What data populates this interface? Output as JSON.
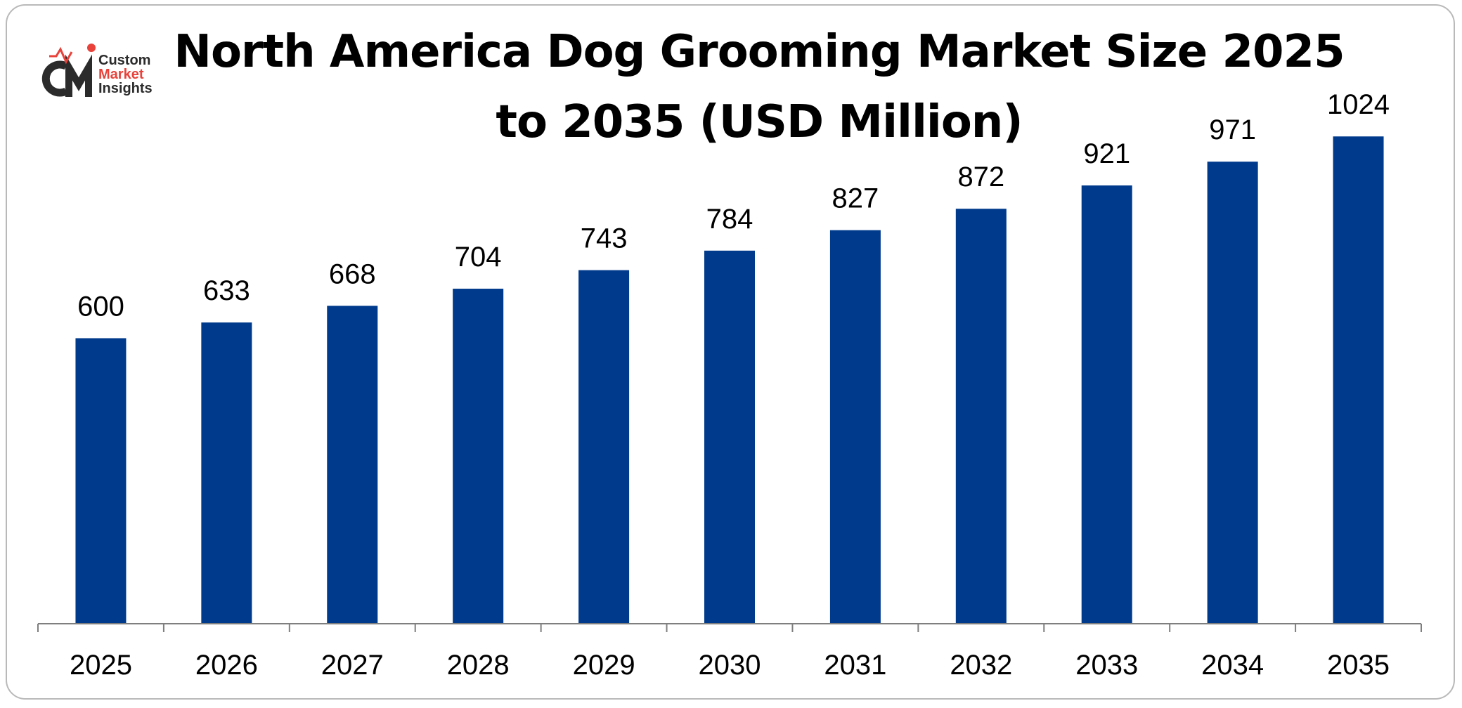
{
  "logo": {
    "line1": "Custom",
    "line2": "Market",
    "line3": "Insights"
  },
  "colors": {
    "bar": "#003a8c",
    "axis": "#7f7f7f",
    "logo_accent": "#e8423a",
    "logo_dark": "#2b2b2b",
    "frame_border": "#b9b9b9"
  },
  "chart_data": {
    "type": "bar",
    "title": "North America Dog Grooming Market Size 2025 to 2035 (USD Million)",
    "title_line1": "North America Dog Grooming Market Size 2025",
    "title_line2": "to 2035 (USD Million)",
    "categories": [
      "2025",
      "2026",
      "2027",
      "2028",
      "2029",
      "2030",
      "2031",
      "2032",
      "2033",
      "2034",
      "2035"
    ],
    "values": [
      600,
      633,
      668,
      704,
      743,
      784,
      827,
      872,
      921,
      971,
      1024
    ],
    "xlabel": "",
    "ylabel": "",
    "ylim": [
      0,
      1150
    ],
    "grid": false,
    "legend": "none",
    "data_labels": true
  }
}
